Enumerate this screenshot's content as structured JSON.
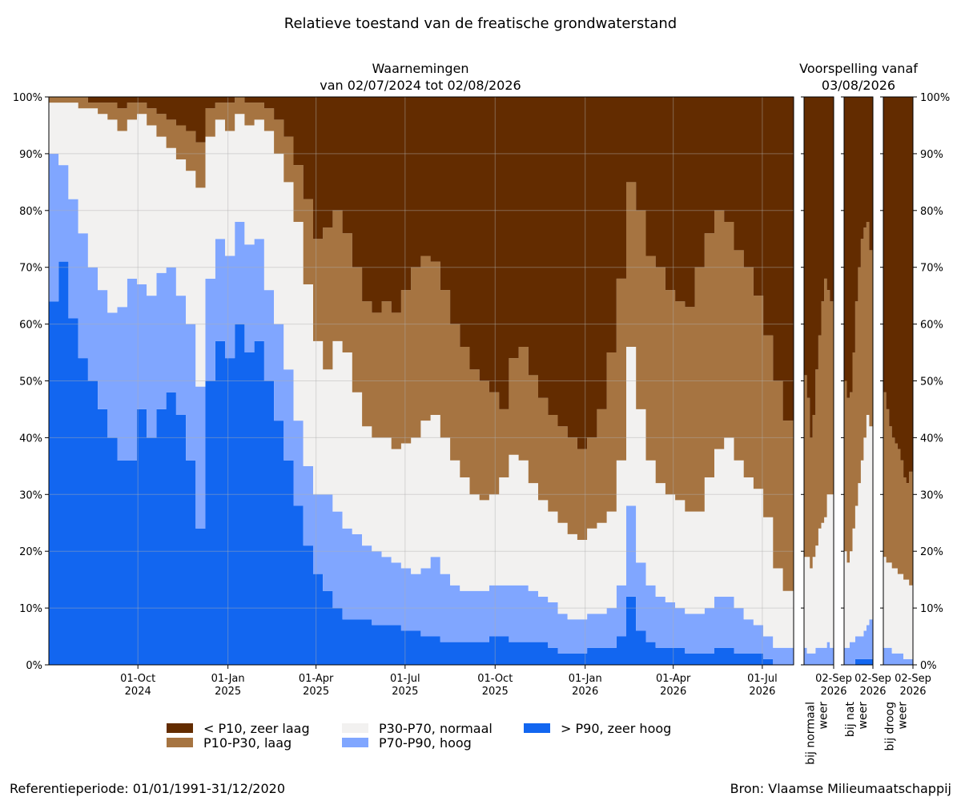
{
  "chart_data": {
    "type": "area",
    "title": "Relatieve toestand van de freatische grondwaterstand",
    "stacking": "percent",
    "ylim": [
      0,
      100
    ],
    "y_ticks": [
      "0%",
      "10%",
      "20%",
      "30%",
      "40%",
      "50%",
      "60%",
      "70%",
      "80%",
      "90%",
      "100%"
    ],
    "grid": true,
    "legend_position": "bottom-center",
    "reference_text": "Referentieperiode: 01/01/1991-31/12/2020",
    "source_text": "Bron: Vlaamse Milieumaatschappij",
    "classes": [
      {
        "key": "zl",
        "label": "< P10, zeer laag",
        "color": "#632c00"
      },
      {
        "key": "l",
        "label": "P10-P30, laag",
        "color": "#a67441"
      },
      {
        "key": "n",
        "label": "P30-P70, normaal",
        "color": "#f2f1f0"
      },
      {
        "key": "h",
        "label": "P70-P90, hoog",
        "color": "#80a6ff"
      },
      {
        "key": "zh",
        "label": "> P90, zeer hoog",
        "color": "#1266f0"
      }
    ],
    "observations": {
      "title_line1": "Waarnemingen",
      "title_line2": "van 02/07/2024 tot 02/08/2026",
      "x_start": "2024-07-02",
      "x_end": "2026-08-02",
      "x_ticks": [
        {
          "date": "2024-10-01",
          "label1": "01-Oct",
          "label2": "2024"
        },
        {
          "date": "2025-01-01",
          "label1": "01-Jan",
          "label2": "2025"
        },
        {
          "date": "2025-04-01",
          "label1": "01-Apr",
          "label2": "2025"
        },
        {
          "date": "2025-07-01",
          "label1": "01-Jul",
          "label2": "2025"
        },
        {
          "date": "2025-10-01",
          "label1": "01-Oct",
          "label2": "2025"
        },
        {
          "date": "2026-01-01",
          "label1": "01-Jan",
          "label2": "2026"
        },
        {
          "date": "2026-04-01",
          "label1": "01-Apr",
          "label2": "2026"
        },
        {
          "date": "2026-07-01",
          "label1": "01-Jul",
          "label2": "2026"
        }
      ],
      "note": "Cumulative boundaries (%) from the bottom: zh = top of '> P90', h = top of 'P70-P90', n = top of 'P30-P70', l = top of 'P10-P30'; above l is '< P10'.",
      "series": [
        {
          "date": "2024-07-02",
          "zh": 64,
          "h": 90,
          "n": 99,
          "l": 100
        },
        {
          "date": "2024-07-12",
          "zh": 71,
          "h": 88,
          "n": 99,
          "l": 100
        },
        {
          "date": "2024-07-22",
          "zh": 61,
          "h": 82,
          "n": 99,
          "l": 100
        },
        {
          "date": "2024-08-01",
          "zh": 54,
          "h": 76,
          "n": 98,
          "l": 100
        },
        {
          "date": "2024-08-11",
          "zh": 50,
          "h": 70,
          "n": 98,
          "l": 99
        },
        {
          "date": "2024-08-21",
          "zh": 45,
          "h": 66,
          "n": 97,
          "l": 99
        },
        {
          "date": "2024-08-31",
          "zh": 40,
          "h": 62,
          "n": 96,
          "l": 99
        },
        {
          "date": "2024-09-10",
          "zh": 36,
          "h": 63,
          "n": 94,
          "l": 98
        },
        {
          "date": "2024-09-20",
          "zh": 36,
          "h": 68,
          "n": 96,
          "l": 99
        },
        {
          "date": "2024-09-30",
          "zh": 45,
          "h": 67,
          "n": 97,
          "l": 99
        },
        {
          "date": "2024-10-10",
          "zh": 40,
          "h": 65,
          "n": 95,
          "l": 98
        },
        {
          "date": "2024-10-20",
          "zh": 45,
          "h": 69,
          "n": 93,
          "l": 97
        },
        {
          "date": "2024-10-30",
          "zh": 48,
          "h": 70,
          "n": 91,
          "l": 96
        },
        {
          "date": "2024-11-09",
          "zh": 44,
          "h": 65,
          "n": 89,
          "l": 95
        },
        {
          "date": "2024-11-19",
          "zh": 36,
          "h": 60,
          "n": 87,
          "l": 94
        },
        {
          "date": "2024-11-29",
          "zh": 24,
          "h": 49,
          "n": 84,
          "l": 92
        },
        {
          "date": "2024-12-09",
          "zh": 50,
          "h": 68,
          "n": 93,
          "l": 98
        },
        {
          "date": "2024-12-19",
          "zh": 57,
          "h": 75,
          "n": 96,
          "l": 99
        },
        {
          "date": "2024-12-29",
          "zh": 54,
          "h": 72,
          "n": 94,
          "l": 99
        },
        {
          "date": "2025-01-08",
          "zh": 60,
          "h": 78,
          "n": 97,
          "l": 100
        },
        {
          "date": "2025-01-18",
          "zh": 55,
          "h": 74,
          "n": 95,
          "l": 99
        },
        {
          "date": "2025-01-28",
          "zh": 57,
          "h": 75,
          "n": 96,
          "l": 99
        },
        {
          "date": "2025-02-07",
          "zh": 50,
          "h": 66,
          "n": 94,
          "l": 98
        },
        {
          "date": "2025-02-17",
          "zh": 43,
          "h": 60,
          "n": 90,
          "l": 96
        },
        {
          "date": "2025-02-27",
          "zh": 36,
          "h": 52,
          "n": 85,
          "l": 93
        },
        {
          "date": "2025-03-09",
          "zh": 28,
          "h": 43,
          "n": 78,
          "l": 88
        },
        {
          "date": "2025-03-19",
          "zh": 21,
          "h": 35,
          "n": 67,
          "l": 82
        },
        {
          "date": "2025-03-29",
          "zh": 16,
          "h": 30,
          "n": 57,
          "l": 75
        },
        {
          "date": "2025-04-08",
          "zh": 13,
          "h": 30,
          "n": 52,
          "l": 77
        },
        {
          "date": "2025-04-18",
          "zh": 10,
          "h": 27,
          "n": 57,
          "l": 80
        },
        {
          "date": "2025-04-28",
          "zh": 8,
          "h": 24,
          "n": 55,
          "l": 76
        },
        {
          "date": "2025-05-08",
          "zh": 8,
          "h": 23,
          "n": 48,
          "l": 70
        },
        {
          "date": "2025-05-18",
          "zh": 8,
          "h": 21,
          "n": 42,
          "l": 64
        },
        {
          "date": "2025-05-28",
          "zh": 7,
          "h": 20,
          "n": 40,
          "l": 62
        },
        {
          "date": "2025-06-07",
          "zh": 7,
          "h": 19,
          "n": 40,
          "l": 64
        },
        {
          "date": "2025-06-17",
          "zh": 7,
          "h": 18,
          "n": 38,
          "l": 62
        },
        {
          "date": "2025-06-27",
          "zh": 6,
          "h": 17,
          "n": 39,
          "l": 66
        },
        {
          "date": "2025-07-07",
          "zh": 6,
          "h": 16,
          "n": 40,
          "l": 70
        },
        {
          "date": "2025-07-17",
          "zh": 5,
          "h": 17,
          "n": 43,
          "l": 72
        },
        {
          "date": "2025-07-27",
          "zh": 5,
          "h": 19,
          "n": 44,
          "l": 71
        },
        {
          "date": "2025-08-06",
          "zh": 4,
          "h": 16,
          "n": 40,
          "l": 66
        },
        {
          "date": "2025-08-16",
          "zh": 4,
          "h": 14,
          "n": 36,
          "l": 60
        },
        {
          "date": "2025-08-26",
          "zh": 4,
          "h": 13,
          "n": 33,
          "l": 56
        },
        {
          "date": "2025-09-05",
          "zh": 4,
          "h": 13,
          "n": 30,
          "l": 52
        },
        {
          "date": "2025-09-15",
          "zh": 4,
          "h": 13,
          "n": 29,
          "l": 50
        },
        {
          "date": "2025-09-25",
          "zh": 5,
          "h": 14,
          "n": 30,
          "l": 48
        },
        {
          "date": "2025-10-05",
          "zh": 5,
          "h": 14,
          "n": 33,
          "l": 45
        },
        {
          "date": "2025-10-15",
          "zh": 4,
          "h": 14,
          "n": 37,
          "l": 54
        },
        {
          "date": "2025-10-25",
          "zh": 4,
          "h": 14,
          "n": 36,
          "l": 56
        },
        {
          "date": "2025-11-04",
          "zh": 4,
          "h": 13,
          "n": 32,
          "l": 51
        },
        {
          "date": "2025-11-14",
          "zh": 4,
          "h": 12,
          "n": 29,
          "l": 47
        },
        {
          "date": "2025-11-24",
          "zh": 3,
          "h": 11,
          "n": 27,
          "l": 44
        },
        {
          "date": "2025-12-04",
          "zh": 2,
          "h": 9,
          "n": 25,
          "l": 42
        },
        {
          "date": "2025-12-14",
          "zh": 2,
          "h": 8,
          "n": 23,
          "l": 40
        },
        {
          "date": "2025-12-24",
          "zh": 2,
          "h": 8,
          "n": 22,
          "l": 38
        },
        {
          "date": "2026-01-03",
          "zh": 3,
          "h": 9,
          "n": 24,
          "l": 40
        },
        {
          "date": "2026-01-13",
          "zh": 3,
          "h": 9,
          "n": 25,
          "l": 45
        },
        {
          "date": "2026-01-23",
          "zh": 3,
          "h": 10,
          "n": 27,
          "l": 55
        },
        {
          "date": "2026-02-02",
          "zh": 5,
          "h": 14,
          "n": 36,
          "l": 68
        },
        {
          "date": "2026-02-12",
          "zh": 12,
          "h": 28,
          "n": 56,
          "l": 85
        },
        {
          "date": "2026-02-22",
          "zh": 6,
          "h": 18,
          "n": 45,
          "l": 80
        },
        {
          "date": "2026-03-04",
          "zh": 4,
          "h": 14,
          "n": 36,
          "l": 72
        },
        {
          "date": "2026-03-14",
          "zh": 3,
          "h": 12,
          "n": 32,
          "l": 70
        },
        {
          "date": "2026-03-24",
          "zh": 3,
          "h": 11,
          "n": 30,
          "l": 66
        },
        {
          "date": "2026-04-03",
          "zh": 3,
          "h": 10,
          "n": 29,
          "l": 64
        },
        {
          "date": "2026-04-13",
          "zh": 2,
          "h": 9,
          "n": 27,
          "l": 63
        },
        {
          "date": "2026-04-23",
          "zh": 2,
          "h": 9,
          "n": 27,
          "l": 70
        },
        {
          "date": "2026-05-03",
          "zh": 2,
          "h": 10,
          "n": 33,
          "l": 76
        },
        {
          "date": "2026-05-13",
          "zh": 3,
          "h": 12,
          "n": 38,
          "l": 80
        },
        {
          "date": "2026-05-23",
          "zh": 3,
          "h": 12,
          "n": 40,
          "l": 78
        },
        {
          "date": "2026-06-02",
          "zh": 2,
          "h": 10,
          "n": 36,
          "l": 73
        },
        {
          "date": "2026-06-12",
          "zh": 2,
          "h": 8,
          "n": 33,
          "l": 70
        },
        {
          "date": "2026-06-22",
          "zh": 2,
          "h": 7,
          "n": 31,
          "l": 65
        },
        {
          "date": "2026-07-02",
          "zh": 1,
          "h": 5,
          "n": 26,
          "l": 58
        },
        {
          "date": "2026-07-12",
          "zh": 0,
          "h": 3,
          "n": 17,
          "l": 50
        },
        {
          "date": "2026-07-22",
          "zh": 0,
          "h": 3,
          "n": 13,
          "l": 43
        },
        {
          "date": "2026-08-02",
          "zh": 0,
          "h": 3,
          "n": 18,
          "l": 44
        }
      ]
    },
    "forecast": {
      "title_line1": "Voorspelling vanaf",
      "title_line2": "03/08/2026",
      "panels": [
        {
          "label_line1": "bij normaal",
          "label_line2": "weer",
          "x_tick_label1": "02-Sep",
          "x_tick_label2": "2026",
          "series": [
            {
              "day": 1,
              "zh": 0,
              "h": 3,
              "n": 19,
              "l": 51
            },
            {
              "day": 4,
              "zh": 0,
              "h": 2,
              "n": 19,
              "l": 47
            },
            {
              "day": 7,
              "zh": 0,
              "h": 2,
              "n": 17,
              "l": 40
            },
            {
              "day": 10,
              "zh": 0,
              "h": 2,
              "n": 19,
              "l": 44
            },
            {
              "day": 13,
              "zh": 0,
              "h": 3,
              "n": 21,
              "l": 52
            },
            {
              "day": 16,
              "zh": 0,
              "h": 3,
              "n": 24,
              "l": 58
            },
            {
              "day": 19,
              "zh": 0,
              "h": 3,
              "n": 25,
              "l": 64
            },
            {
              "day": 22,
              "zh": 0,
              "h": 3,
              "n": 26,
              "l": 68
            },
            {
              "day": 25,
              "zh": 0,
              "h": 4,
              "n": 30,
              "l": 66
            },
            {
              "day": 28,
              "zh": 0,
              "h": 3,
              "n": 30,
              "l": 64
            }
          ]
        },
        {
          "label_line1": "bij nat",
          "label_line2": "weer",
          "x_tick_label1": "02-Sep",
          "x_tick_label2": "2026",
          "series": [
            {
              "day": 1,
              "zh": 0,
              "h": 3,
              "n": 20,
              "l": 50
            },
            {
              "day": 4,
              "zh": 0,
              "h": 3,
              "n": 18,
              "l": 47
            },
            {
              "day": 7,
              "zh": 0,
              "h": 4,
              "n": 20,
              "l": 48
            },
            {
              "day": 10,
              "zh": 0,
              "h": 4,
              "n": 24,
              "l": 55
            },
            {
              "day": 13,
              "zh": 1,
              "h": 5,
              "n": 28,
              "l": 64
            },
            {
              "day": 16,
              "zh": 1,
              "h": 5,
              "n": 32,
              "l": 70
            },
            {
              "day": 19,
              "zh": 1,
              "h": 5,
              "n": 36,
              "l": 75
            },
            {
              "day": 22,
              "zh": 1,
              "h": 6,
              "n": 40,
              "l": 77
            },
            {
              "day": 25,
              "zh": 1,
              "h": 7,
              "n": 44,
              "l": 78
            },
            {
              "day": 28,
              "zh": 1,
              "h": 8,
              "n": 42,
              "l": 73
            }
          ]
        },
        {
          "label_line1": "bij droog",
          "label_line2": "weer",
          "x_tick_label1": "02-Sep",
          "x_tick_label2": "2026",
          "series": [
            {
              "day": 1,
              "zh": 0,
              "h": 3,
              "n": 19,
              "l": 48
            },
            {
              "day": 4,
              "zh": 0,
              "h": 3,
              "n": 18,
              "l": 45
            },
            {
              "day": 7,
              "zh": 0,
              "h": 3,
              "n": 18,
              "l": 42
            },
            {
              "day": 10,
              "zh": 0,
              "h": 2,
              "n": 17,
              "l": 40
            },
            {
              "day": 13,
              "zh": 0,
              "h": 2,
              "n": 17,
              "l": 39
            },
            {
              "day": 16,
              "zh": 0,
              "h": 2,
              "n": 16,
              "l": 38
            },
            {
              "day": 19,
              "zh": 0,
              "h": 2,
              "n": 16,
              "l": 36
            },
            {
              "day": 22,
              "zh": 0,
              "h": 1,
              "n": 15,
              "l": 33
            },
            {
              "day": 25,
              "zh": 0,
              "h": 1,
              "n": 15,
              "l": 32
            },
            {
              "day": 28,
              "zh": 0,
              "h": 1,
              "n": 14,
              "l": 34
            }
          ]
        }
      ]
    }
  }
}
